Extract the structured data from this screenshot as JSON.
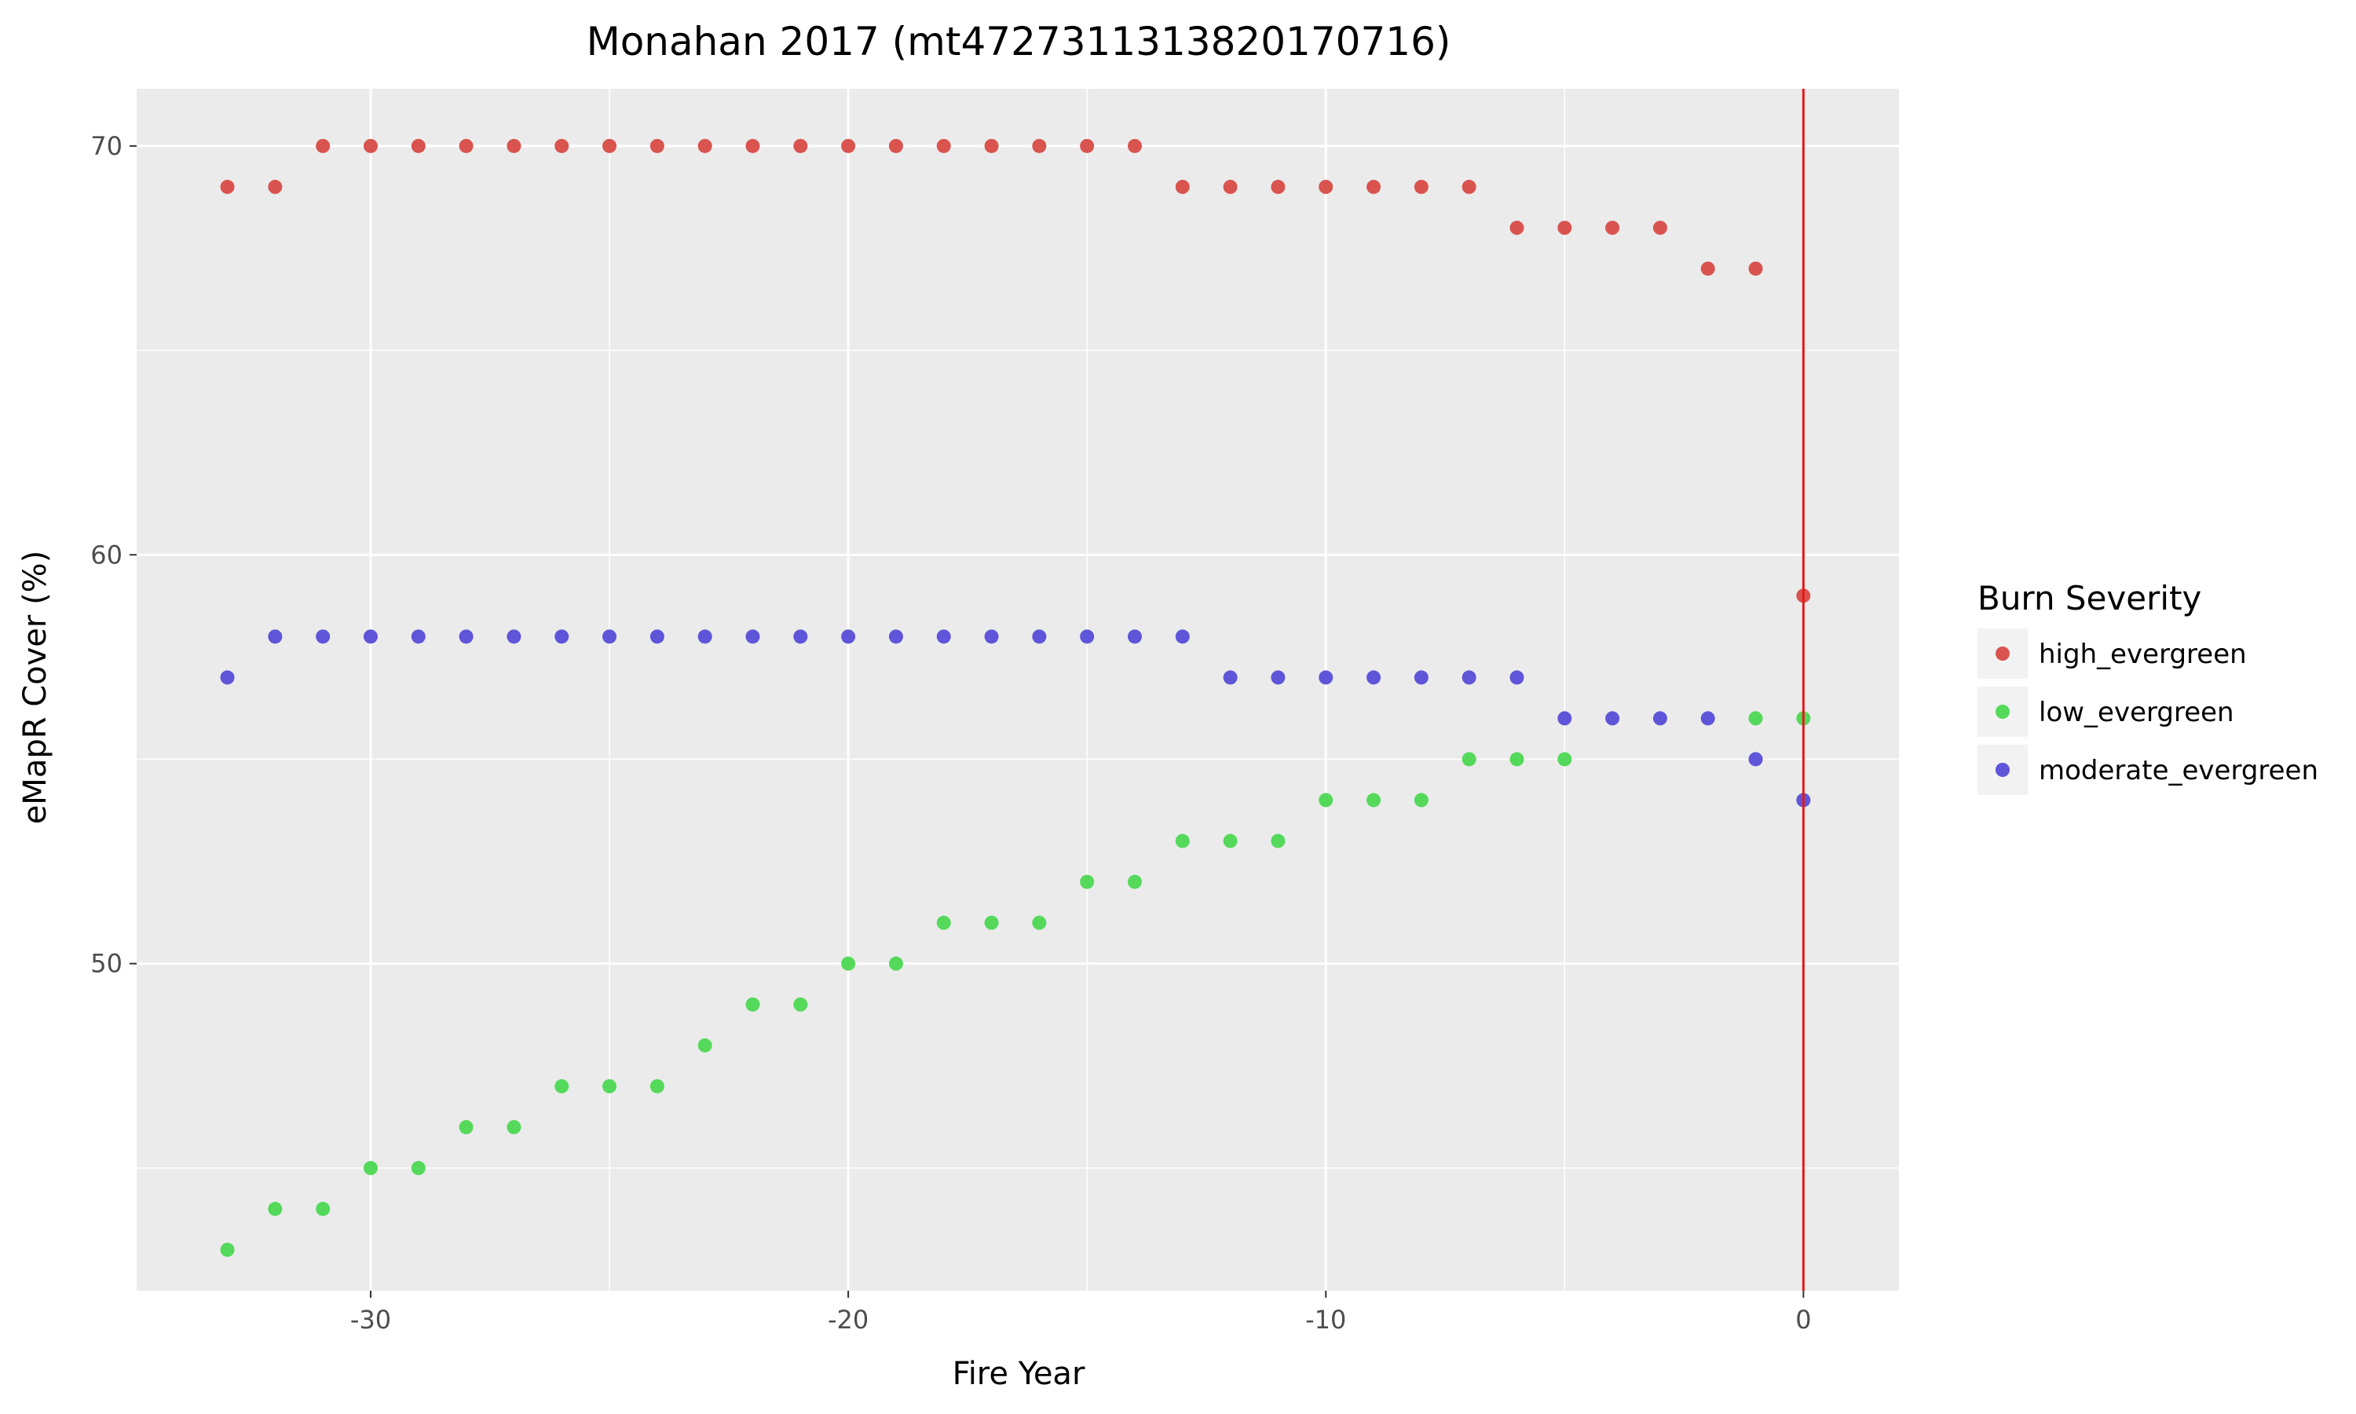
{
  "chart_data": {
    "type": "scatter",
    "title": "Monahan 2017 (mt4727311313820170716)",
    "xlabel": "Fire Year",
    "ylabel": "eMapR Cover (%)",
    "xlim": [
      -34.9,
      2.0
    ],
    "ylim": [
      42.0,
      71.4
    ],
    "x_ticks": [
      -30,
      -20,
      -10,
      0
    ],
    "y_ticks": [
      50,
      60,
      70
    ],
    "grid": true,
    "reference_line": {
      "x": 0,
      "color": "#e41a1c"
    },
    "legend": {
      "title": "Burn Severity",
      "placement": "right"
    },
    "series": [
      {
        "name": "high_evergreen",
        "color": "#d9534f",
        "points": [
          [
            -33,
            69
          ],
          [
            -32,
            69
          ],
          [
            -31,
            70
          ],
          [
            -30,
            70
          ],
          [
            -29,
            70
          ],
          [
            -28,
            70
          ],
          [
            -27,
            70
          ],
          [
            -26,
            70
          ],
          [
            -25,
            70
          ],
          [
            -24,
            70
          ],
          [
            -23,
            70
          ],
          [
            -22,
            70
          ],
          [
            -21,
            70
          ],
          [
            -20,
            70
          ],
          [
            -19,
            70
          ],
          [
            -18,
            70
          ],
          [
            -17,
            70
          ],
          [
            -16,
            70
          ],
          [
            -15,
            70
          ],
          [
            -14,
            70
          ],
          [
            -13,
            69
          ],
          [
            -12,
            69
          ],
          [
            -11,
            69
          ],
          [
            -10,
            69
          ],
          [
            -9,
            69
          ],
          [
            -8,
            69
          ],
          [
            -7,
            69
          ],
          [
            -6,
            68
          ],
          [
            -5,
            68
          ],
          [
            -4,
            68
          ],
          [
            -3,
            68
          ],
          [
            -2,
            67
          ],
          [
            -1,
            67
          ],
          [
            0,
            59
          ]
        ]
      },
      {
        "name": "low_evergreen",
        "color": "#55d95b",
        "points": [
          [
            -33,
            43
          ],
          [
            -32,
            44
          ],
          [
            -31,
            44
          ],
          [
            -30,
            45
          ],
          [
            -29,
            45
          ],
          [
            -28,
            46
          ],
          [
            -27,
            46
          ],
          [
            -26,
            47
          ],
          [
            -25,
            47
          ],
          [
            -24,
            47
          ],
          [
            -23,
            48
          ],
          [
            -22,
            49
          ],
          [
            -21,
            49
          ],
          [
            -20,
            50
          ],
          [
            -19,
            50
          ],
          [
            -18,
            51
          ],
          [
            -17,
            51
          ],
          [
            -16,
            51
          ],
          [
            -15,
            52
          ],
          [
            -14,
            52
          ],
          [
            -13,
            53
          ],
          [
            -12,
            53
          ],
          [
            -11,
            53
          ],
          [
            -10,
            54
          ],
          [
            -9,
            54
          ],
          [
            -8,
            54
          ],
          [
            -7,
            55
          ],
          [
            -6,
            55
          ],
          [
            -5,
            55
          ],
          [
            -1,
            56
          ],
          [
            0,
            56
          ]
        ]
      },
      {
        "name": "moderate_evergreen",
        "color": "#5e55d9",
        "points": [
          [
            -33,
            57
          ],
          [
            -32,
            58
          ],
          [
            -31,
            58
          ],
          [
            -30,
            58
          ],
          [
            -29,
            58
          ],
          [
            -28,
            58
          ],
          [
            -27,
            58
          ],
          [
            -26,
            58
          ],
          [
            -25,
            58
          ],
          [
            -24,
            58
          ],
          [
            -23,
            58
          ],
          [
            -22,
            58
          ],
          [
            -21,
            58
          ],
          [
            -20,
            58
          ],
          [
            -19,
            58
          ],
          [
            -18,
            58
          ],
          [
            -17,
            58
          ],
          [
            -16,
            58
          ],
          [
            -15,
            58
          ],
          [
            -14,
            58
          ],
          [
            -13,
            58
          ],
          [
            -12,
            57
          ],
          [
            -11,
            57
          ],
          [
            -10,
            57
          ],
          [
            -9,
            57
          ],
          [
            -8,
            57
          ],
          [
            -7,
            57
          ],
          [
            -6,
            57
          ],
          [
            -5,
            56
          ],
          [
            -4,
            56
          ],
          [
            -3,
            56
          ],
          [
            -2,
            56
          ],
          [
            -1,
            55
          ],
          [
            0,
            54
          ]
        ]
      }
    ]
  }
}
